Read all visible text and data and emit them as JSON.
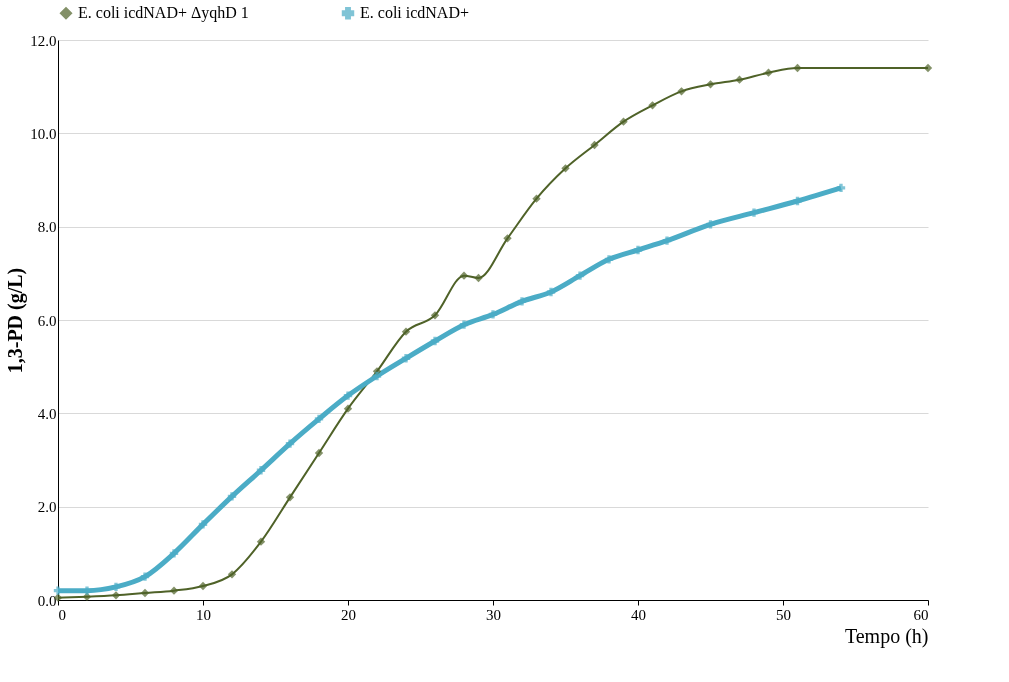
{
  "chart_data": {
    "type": "line",
    "xlabel": "Tempo (h)",
    "ylabel": "1,3-PD (g/L)",
    "xlim": [
      0,
      60
    ],
    "xticks": [
      0,
      10,
      20,
      30,
      40,
      50,
      60
    ],
    "ylim": [
      0,
      12
    ],
    "yticks": [
      {
        "value": 0,
        "label": "0.0"
      },
      {
        "value": 2,
        "label": "2.0"
      },
      {
        "value": 4,
        "label": "4.0"
      },
      {
        "value": 6,
        "label": "6.0"
      },
      {
        "value": 8,
        "label": "8.0"
      },
      {
        "value": 10,
        "label": "10.0"
      },
      {
        "value": 12,
        "label": "12.0"
      }
    ],
    "grid": "y",
    "legend": "top",
    "line_style": "solid",
    "series": [
      {
        "name": "E. coli icdNAD+ ΔyqhD 1",
        "color": "#4f6228",
        "marker": "diamond",
        "x": [
          0,
          2,
          4,
          6,
          8,
          10,
          12,
          14,
          16,
          18,
          20,
          22,
          24,
          26,
          28,
          29,
          31,
          33,
          35,
          37,
          39,
          41,
          43,
          45,
          47,
          49,
          51,
          60
        ],
        "values": [
          0.05,
          0.07,
          0.1,
          0.15,
          0.2,
          0.3,
          0.55,
          1.25,
          2.2,
          3.15,
          4.1,
          4.9,
          5.75,
          6.1,
          6.95,
          6.9,
          7.75,
          8.6,
          9.25,
          9.75,
          10.25,
          10.6,
          10.9,
          11.05,
          11.15,
          11.3,
          11.4,
          11.4
        ]
      },
      {
        "name": "E. coli icdNAD+",
        "color": "#4bacc6",
        "marker": "cross",
        "x": [
          0,
          2,
          4,
          6,
          8,
          10,
          12,
          14,
          16,
          18,
          20,
          22,
          24,
          26,
          28,
          30,
          32,
          34,
          36,
          38,
          40,
          42,
          45,
          48,
          51,
          54
        ],
        "values": [
          0.2,
          0.2,
          0.28,
          0.5,
          1.0,
          1.62,
          2.22,
          2.78,
          3.35,
          3.88,
          4.38,
          4.8,
          5.18,
          5.55,
          5.9,
          6.12,
          6.4,
          6.6,
          6.95,
          7.3,
          7.5,
          7.7,
          8.05,
          8.3,
          8.55,
          8.83
        ]
      }
    ]
  }
}
